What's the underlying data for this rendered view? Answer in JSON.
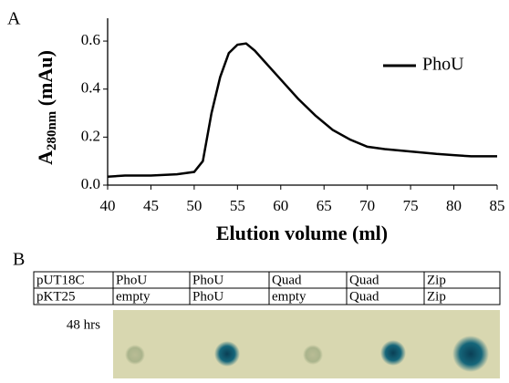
{
  "panel_a_label": "A",
  "chart_data": {
    "type": "line",
    "ylabel": {
      "main": "A",
      "sub": "280nm",
      "unit": " (mAu)"
    },
    "xlabel": "Elution volume (ml)",
    "xlim": [
      40,
      85
    ],
    "xticks": [
      40,
      45,
      50,
      55,
      60,
      65,
      70,
      75,
      80,
      85
    ],
    "ylim": [
      0,
      0.68
    ],
    "yticks": [
      {
        "value": 0,
        "label": "0.0"
      },
      0.2,
      0.4,
      0.6
    ],
    "legend": "upper right",
    "series": [
      {
        "name": "PhoU",
        "color": "#000000",
        "x": [
          40,
          42,
          45,
          48,
          50,
          51,
          52,
          53,
          54,
          55,
          56,
          57,
          58,
          60,
          62,
          64,
          66,
          68,
          70,
          72,
          75,
          78,
          80,
          82,
          85
        ],
        "values": [
          0.035,
          0.04,
          0.04,
          0.045,
          0.055,
          0.1,
          0.3,
          0.45,
          0.55,
          0.585,
          0.59,
          0.56,
          0.52,
          0.44,
          0.36,
          0.29,
          0.23,
          0.19,
          0.16,
          0.15,
          0.14,
          0.13,
          0.125,
          0.12,
          0.12
        ]
      }
    ]
  },
  "panel_b": {
    "label": "B",
    "table": {
      "rows": [
        [
          "pUT18C",
          "PhoU",
          "PhoU",
          "Quad",
          "Quad",
          "Zip"
        ],
        [
          "pKT25",
          "empty",
          "PhoU",
          "empty",
          "Quad",
          "Zip"
        ]
      ]
    },
    "plate_label": "48 hrs"
  }
}
